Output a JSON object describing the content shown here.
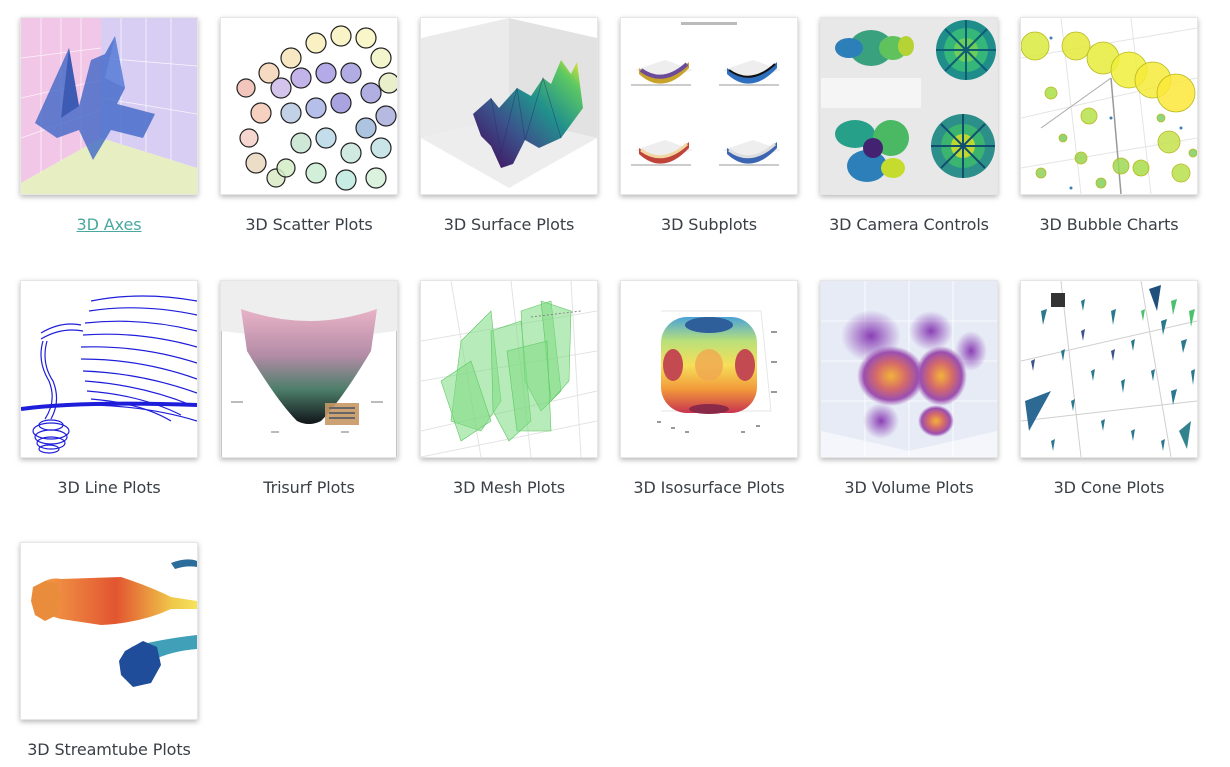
{
  "gallery": {
    "items": [
      {
        "title": "3D Axes",
        "icon": "3d-axes-thumbnail-icon",
        "active": true
      },
      {
        "title": "3D Scatter Plots",
        "icon": "3d-scatter-thumbnail-icon"
      },
      {
        "title": "3D Surface Plots",
        "icon": "3d-surface-thumbnail-icon"
      },
      {
        "title": "3D Subplots",
        "icon": "3d-subplots-thumbnail-icon"
      },
      {
        "title": "3D Camera Controls",
        "icon": "3d-camera-thumbnail-icon"
      },
      {
        "title": "3D Bubble Charts",
        "icon": "3d-bubble-thumbnail-icon"
      },
      {
        "title": "3D Line Plots",
        "icon": "3d-line-thumbnail-icon"
      },
      {
        "title": "Trisurf Plots",
        "icon": "trisurf-thumbnail-icon"
      },
      {
        "title": "3D Mesh Plots",
        "icon": "3d-mesh-thumbnail-icon"
      },
      {
        "title": "3D Isosurface Plots",
        "icon": "3d-isosurface-thumbnail-icon"
      },
      {
        "title": "3D Volume Plots",
        "icon": "3d-volume-thumbnail-icon"
      },
      {
        "title": "3D Cone Plots",
        "icon": "3d-cone-thumbnail-icon"
      },
      {
        "title": "3D Streamtube Plots",
        "icon": "3d-streamtube-thumbnail-icon"
      }
    ],
    "active_link_color": "#4aa7a1",
    "label_color": "#3a4046"
  }
}
